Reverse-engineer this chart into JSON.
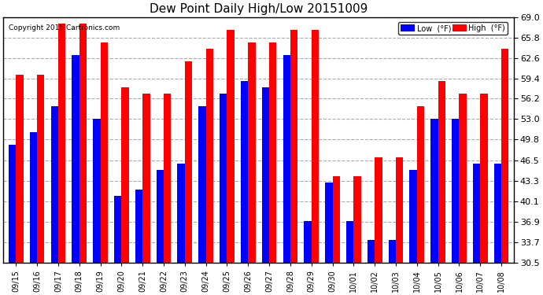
{
  "title": "Dew Point Daily High/Low 20151009",
  "copyright": "Copyright 2015 Cartronics.com",
  "legend_low": "Low  (°F)",
  "legend_high": "High  (°F)",
  "dates": [
    "09/15",
    "09/16",
    "09/17",
    "09/18",
    "09/19",
    "09/20",
    "09/21",
    "09/22",
    "09/23",
    "09/24",
    "09/25",
    "09/26",
    "09/27",
    "09/28",
    "09/29",
    "09/30",
    "10/01",
    "10/02",
    "10/03",
    "10/04",
    "10/05",
    "10/06",
    "10/07",
    "10/08"
  ],
  "low_vals": [
    49,
    51,
    55,
    63,
    53,
    41,
    42,
    45,
    46,
    55,
    57,
    59,
    58,
    63,
    37,
    43,
    37,
    34,
    34,
    45,
    53,
    53,
    46,
    46
  ],
  "high_vals": [
    60,
    60,
    68,
    68,
    65,
    58,
    57,
    57,
    62,
    64,
    67,
    65,
    65,
    67,
    67,
    44,
    44,
    47,
    47,
    55,
    59,
    57,
    57,
    64
  ],
  "ymin": 30.5,
  "ymax": 69.0,
  "ytick_vals": [
    30.5,
    33.7,
    36.9,
    40.1,
    43.3,
    46.5,
    49.8,
    53.0,
    56.2,
    59.4,
    62.6,
    65.8,
    69.0
  ],
  "low_color": "#0000ff",
  "high_color": "#ff0000",
  "bg_color": "#ffffff",
  "grid_color": "#aaaaaa",
  "bar_width": 0.35
}
